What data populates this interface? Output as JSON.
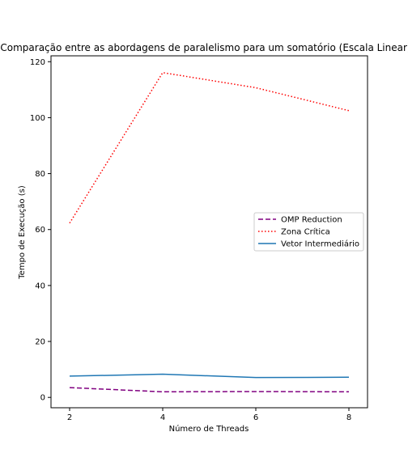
{
  "chart_data": {
    "type": "line",
    "title": "Comparação entre as abordagens de paralelismo para um somatório (Escala Linear)",
    "xlabel": "Número de Threads",
    "ylabel": "Tempo de Execução (s)",
    "x": [
      2,
      4,
      6,
      8
    ],
    "xticks": [
      2,
      4,
      6,
      8
    ],
    "yticks": [
      0,
      20,
      40,
      60,
      80,
      100,
      120
    ],
    "xlim": [
      1.6,
      8.4
    ],
    "ylim": [
      -3.7,
      122.1
    ],
    "grid": false,
    "legend_position": "center-right",
    "series": [
      {
        "name": "OMP Reduction",
        "values": [
          3.5,
          2.0,
          2.1,
          2.0
        ],
        "color": "#800080",
        "linestyle": "dashed"
      },
      {
        "name": "Zona Crítica",
        "values": [
          62.3,
          116.1,
          110.7,
          102.5
        ],
        "color": "#ff0000",
        "linestyle": "dotted"
      },
      {
        "name": "Vetor Intermediário",
        "values": [
          7.6,
          8.3,
          7.1,
          7.2
        ],
        "color": "#1f77b4",
        "linestyle": "solid"
      }
    ]
  }
}
